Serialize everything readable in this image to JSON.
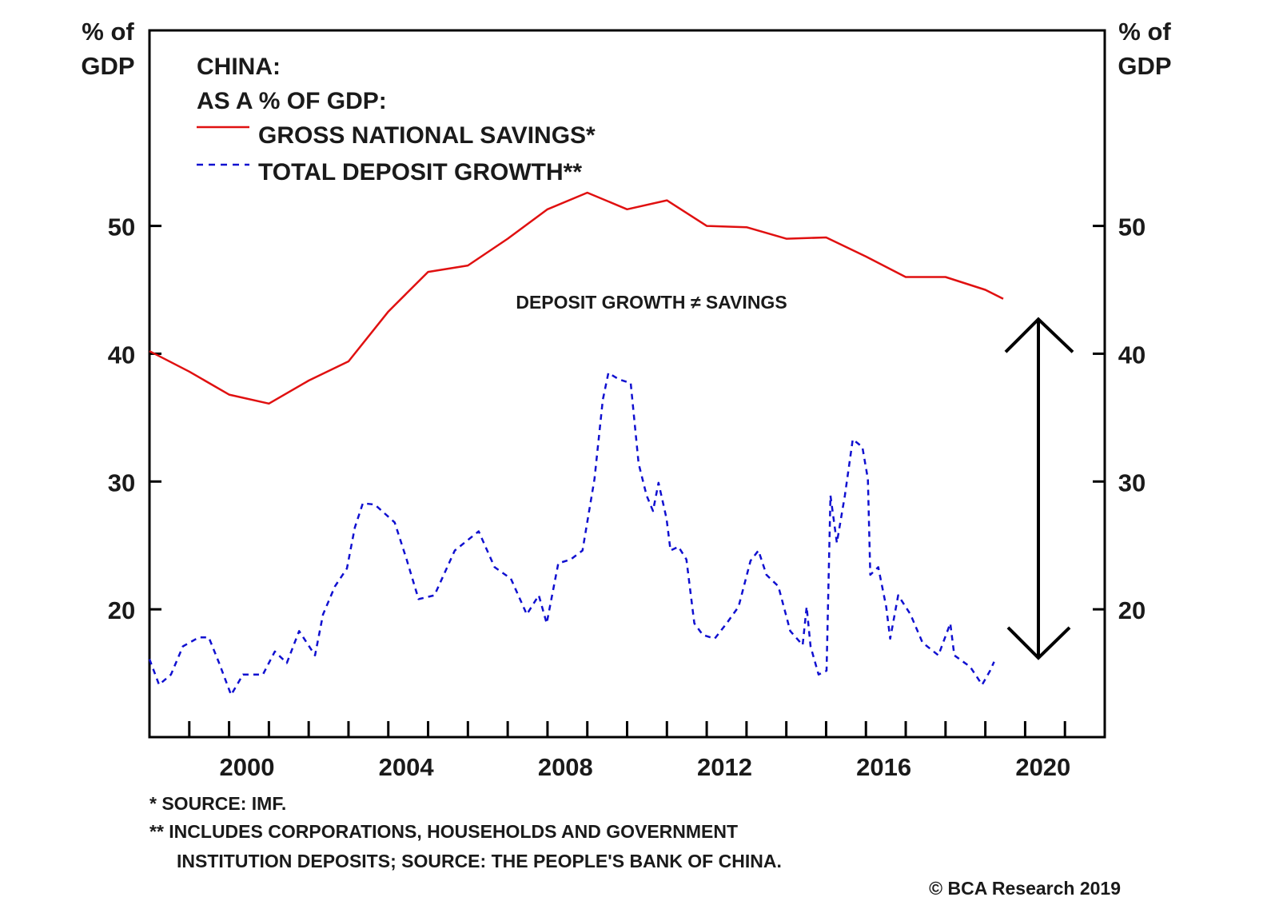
{
  "chart_data": {
    "type": "line",
    "title": "CHINA:",
    "subtitle": "AS A % OF GDP:",
    "ylabel_left": [
      "% of",
      "GDP"
    ],
    "ylabel_right": [
      "% of",
      "GDP"
    ],
    "xlim": [
      1998,
      2022
    ],
    "ylim": [
      10,
      65.3
    ],
    "yticks": [
      20,
      30,
      40,
      50
    ],
    "xtick_labels": [
      "2000",
      "2004",
      "2008",
      "2012",
      "2016",
      "2020"
    ],
    "xtick_label_years": [
      2000,
      2004,
      2008,
      2012,
      2016,
      2020
    ],
    "minor_xticks_every_year": true,
    "grid": false,
    "legend_position": "top-left",
    "series": [
      {
        "name": "GROSS NATIONAL SAVINGS*",
        "color": "#e01010",
        "style": "solid",
        "x": [
          1998,
          1999,
          2000,
          2001,
          2002,
          2003,
          2004,
          2005,
          2006,
          2007,
          2008,
          2009,
          2010,
          2011,
          2012,
          2013,
          2014,
          2015,
          2016,
          2017,
          2018,
          2019,
          2019.45
        ],
        "y": [
          40.2,
          38.6,
          36.8,
          36.1,
          37.9,
          39.4,
          43.3,
          46.4,
          46.9,
          49.0,
          51.3,
          52.6,
          51.3,
          52.0,
          50.0,
          49.9,
          49.0,
          49.1,
          47.6,
          46.0,
          46.0,
          45.0,
          44.3
        ]
      },
      {
        "name": "TOTAL DEPOSIT GROWTH**",
        "color": "#1010d0",
        "style": "dashed",
        "x": [
          1998.0,
          1998.24,
          1998.54,
          1998.84,
          1999.24,
          1999.49,
          1999.75,
          2000.05,
          2000.35,
          2000.85,
          2001.15,
          2001.45,
          2001.76,
          2002.16,
          2002.36,
          2002.66,
          2002.96,
          2003.16,
          2003.36,
          2003.66,
          2004.16,
          2004.46,
          2004.76,
          2005.16,
          2005.67,
          2006.27,
          2006.67,
          2007.08,
          2007.48,
          2007.78,
          2007.98,
          2008.27,
          2008.58,
          2008.88,
          2009.18,
          2009.39,
          2009.53,
          2009.79,
          2010.09,
          2010.29,
          2010.49,
          2010.65,
          2010.79,
          2010.99,
          2011.09,
          2011.29,
          2011.49,
          2011.69,
          2011.9,
          2012.2,
          2012.5,
          2012.8,
          2013.1,
          2013.3,
          2013.5,
          2013.8,
          2014.1,
          2014.41,
          2014.51,
          2014.61,
          2014.81,
          2015.01,
          2015.11,
          2015.27,
          2015.47,
          2015.67,
          2015.91,
          2016.05,
          2016.11,
          2016.31,
          2016.51,
          2016.61,
          2016.81,
          2017.12,
          2017.42,
          2017.82,
          2018.12,
          2018.22,
          2018.62,
          2018.92,
          2019.12,
          2019.22
        ],
        "y": [
          16.1,
          14.1,
          14.9,
          17.1,
          17.8,
          17.8,
          15.8,
          13.3,
          14.9,
          14.9,
          16.7,
          15.8,
          18.3,
          16.4,
          19.6,
          21.8,
          23.2,
          26.4,
          28.3,
          28.2,
          26.8,
          23.9,
          20.8,
          21.1,
          24.6,
          26.1,
          23.3,
          22.4,
          19.6,
          21.1,
          18.9,
          23.6,
          23.9,
          24.6,
          30.2,
          36.4,
          38.5,
          38.0,
          37.7,
          31.4,
          28.9,
          27.7,
          29.9,
          27.1,
          24.6,
          24.9,
          23.9,
          18.9,
          18.0,
          17.7,
          18.9,
          20.2,
          23.8,
          24.6,
          22.7,
          21.8,
          18.3,
          17.2,
          20.2,
          17.1,
          14.9,
          15.2,
          28.9,
          25.2,
          28.9,
          33.3,
          32.7,
          30.2,
          22.7,
          23.3,
          20.2,
          17.7,
          21.1,
          19.6,
          17.4,
          16.4,
          18.9,
          16.4,
          15.5,
          14.1,
          15.2,
          15.9
        ]
      }
    ],
    "annotation": "DEPOSIT GROWTH ≠ SAVINGS",
    "arrow": {
      "type": "double-vertical",
      "from": 16.2,
      "to": 42.7,
      "year": 2020.3
    },
    "footnotes": [
      "*  SOURCE: IMF.",
      "** INCLUDES CORPORATIONS, HOUSEHOLDS AND GOVERNMENT",
      "INSTITUTION DEPOSITS; SOURCE: THE PEOPLE'S BANK OF CHINA."
    ],
    "credit": "© BCA Research 2019"
  }
}
